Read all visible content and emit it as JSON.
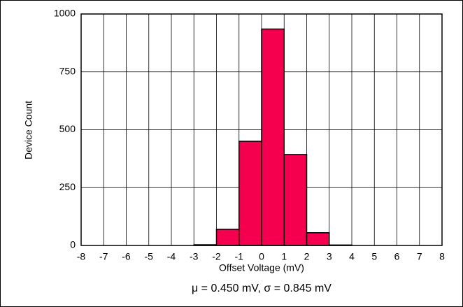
{
  "chart_data": {
    "type": "histogram",
    "bins": [
      -8,
      -7,
      -6,
      -5,
      -4,
      -3,
      -2,
      -1,
      0,
      1,
      2,
      3,
      4,
      5,
      6,
      7,
      8
    ],
    "values": [
      0,
      0,
      0,
      0,
      0,
      3,
      70,
      450,
      935,
      393,
      55,
      2,
      0,
      0,
      0,
      0
    ],
    "color": "#f5004f",
    "xlabel": "Offset Voltage (mV)",
    "ylabel": "Device Count",
    "annotation": "μ = 0.450 mV, σ = 0.845 mV",
    "xlim": [
      -8,
      8
    ],
    "xticks": [
      -8,
      -7,
      -6,
      -5,
      -4,
      -3,
      -2,
      -1,
      0,
      1,
      2,
      3,
      4,
      5,
      6,
      7,
      8
    ],
    "ylim": [
      0,
      1000
    ],
    "yticks": [
      0,
      250,
      500,
      750,
      1000
    ],
    "grid": true
  }
}
